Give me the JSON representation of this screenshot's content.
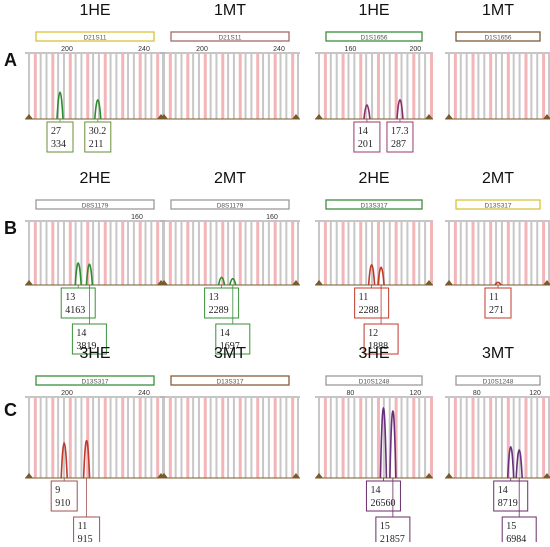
{
  "rows": [
    {
      "letter": "A",
      "panels": [
        {
          "title": "1HE",
          "marker": "D21S11",
          "box_color": "#d9c33a",
          "axis_ticks": [
            "200",
            "240"
          ],
          "peak_color": "#2e8b2e",
          "peaks": [
            {
              "pos": 0.25,
              "h": 0.42
            },
            {
              "pos": 0.52,
              "h": 0.3
            }
          ],
          "labels": [
            {
              "allele": "27",
              "value": "334",
              "pos": 0.25,
              "row": 0,
              "color": "#6a8f3a"
            },
            {
              "allele": "30.2",
              "value": "211",
              "pos": 0.52,
              "row": 0,
              "color": "#6a8f3a"
            }
          ]
        },
        {
          "title": "1MT",
          "marker": "D21S11",
          "box_color": "#a86868",
          "axis_ticks": [
            "200",
            "240"
          ],
          "peak_color": "#2e8b2e",
          "peaks": [],
          "labels": []
        },
        {
          "title": "1HE",
          "marker": "D1S1656",
          "box_color": "#3a8f3a",
          "axis_ticks": [
            "160",
            "200"
          ],
          "peak_color": "#8a2e6a",
          "peaks": [
            {
              "pos": 0.44,
              "h": 0.22
            },
            {
              "pos": 0.72,
              "h": 0.3
            }
          ],
          "labels": [
            {
              "allele": "14",
              "value": "201",
              "pos": 0.44,
              "row": 0,
              "color": "#9a3a6a"
            },
            {
              "allele": "17.3",
              "value": "287",
              "pos": 0.72,
              "row": 0,
              "color": "#9a3a6a"
            }
          ]
        },
        {
          "title": "1MT",
          "marker": "D1S1656",
          "box_color": "#7a5a3a",
          "axis_ticks": [],
          "peak_color": "#8a2e6a",
          "peaks": [],
          "labels": []
        }
      ]
    },
    {
      "letter": "B",
      "panels": [
        {
          "title": "2HE",
          "marker": "D8S1179",
          "box_color": "#9a9a9a",
          "axis_ticks": [
            "160"
          ],
          "peak_color": "#2e8b2e",
          "peaks": [
            {
              "pos": 0.38,
              "h": 0.35
            },
            {
              "pos": 0.46,
              "h": 0.33
            }
          ],
          "labels": [
            {
              "allele": "13",
              "value": "4163",
              "pos": 0.38,
              "row": 0,
              "color": "#3a8f3a"
            },
            {
              "allele": "14",
              "value": "3819",
              "pos": 0.46,
              "row": 1,
              "color": "#3a8f3a"
            }
          ]
        },
        {
          "title": "2MT",
          "marker": "D8S1179",
          "box_color": "#9a9a9a",
          "axis_ticks": [
            "160"
          ],
          "peak_color": "#2e8b2e",
          "peaks": [
            {
              "pos": 0.44,
              "h": 0.12
            },
            {
              "pos": 0.52,
              "h": 0.1
            }
          ],
          "labels": [
            {
              "allele": "13",
              "value": "2289",
              "pos": 0.44,
              "row": 0,
              "color": "#3a8f3a"
            },
            {
              "allele": "14",
              "value": "1697",
              "pos": 0.52,
              "row": 1,
              "color": "#3a8f3a"
            }
          ]
        },
        {
          "title": "2HE",
          "marker": "D13S317",
          "box_color": "#3a8f3a",
          "axis_ticks": [],
          "peak_color": "#c0392b",
          "peaks": [
            {
              "pos": 0.48,
              "h": 0.32
            },
            {
              "pos": 0.56,
              "h": 0.28
            }
          ],
          "labels": [
            {
              "allele": "11",
              "value": "2288",
              "pos": 0.48,
              "row": 0,
              "color": "#c0392b"
            },
            {
              "allele": "12",
              "value": "1888",
              "pos": 0.56,
              "row": 1,
              "color": "#c0392b"
            }
          ]
        },
        {
          "title": "2MT",
          "marker": "D13S317",
          "box_color": "#d9c33a",
          "axis_ticks": [],
          "peak_color": "#c0392b",
          "peaks": [
            {
              "pos": 0.5,
              "h": 0.04
            }
          ],
          "labels": [
            {
              "allele": "11",
              "value": "271",
              "pos": 0.5,
              "row": 0,
              "color": "#c0392b"
            }
          ]
        }
      ]
    },
    {
      "letter": "C",
      "panels": [
        {
          "title": "3HE",
          "marker": "D13S317",
          "box_color": "#3a8f3a",
          "axis_ticks": [
            "200",
            "240"
          ],
          "peak_color": "#c0392b",
          "peaks": [
            {
              "pos": 0.28,
              "h": 0.45
            },
            {
              "pos": 0.44,
              "h": 0.48
            }
          ],
          "labels": [
            {
              "allele": "9",
              "value": "910",
              "pos": 0.28,
              "row": 0,
              "color": "#a05050"
            },
            {
              "allele": "11",
              "value": "915",
              "pos": 0.44,
              "row": 1,
              "color": "#a05050"
            }
          ]
        },
        {
          "title": "3MT",
          "marker": "D13S317",
          "box_color": "#8a5a3a",
          "axis_ticks": [],
          "peak_color": "#c0392b",
          "peaks": [],
          "labels": []
        },
        {
          "title": "3HE",
          "marker": "D10S1248",
          "box_color": "#9a9a9a",
          "axis_ticks": [
            "80",
            "120"
          ],
          "peak_color": "#6a2e7a",
          "peaks": [
            {
              "pos": 0.58,
              "h": 0.9
            },
            {
              "pos": 0.66,
              "h": 0.86
            }
          ],
          "labels": [
            {
              "allele": "14",
              "value": "26560",
              "pos": 0.58,
              "row": 0,
              "color": "#6a2e6a"
            },
            {
              "allele": "15",
              "value": "21857",
              "pos": 0.66,
              "row": 1,
              "color": "#6a2e6a"
            }
          ]
        },
        {
          "title": "3MT",
          "marker": "D10S1248",
          "box_color": "#9a9a9a",
          "axis_ticks": [
            "80",
            "120"
          ],
          "peak_color": "#6a2e7a",
          "peaks": [
            {
              "pos": 0.62,
              "h": 0.4
            },
            {
              "pos": 0.7,
              "h": 0.36
            }
          ],
          "labels": [
            {
              "allele": "14",
              "value": "8719",
              "pos": 0.62,
              "row": 0,
              "color": "#6a2e6a"
            },
            {
              "allele": "15",
              "value": "6984",
              "pos": 0.7,
              "row": 1,
              "color": "#6a2e6a"
            }
          ]
        }
      ]
    }
  ]
}
